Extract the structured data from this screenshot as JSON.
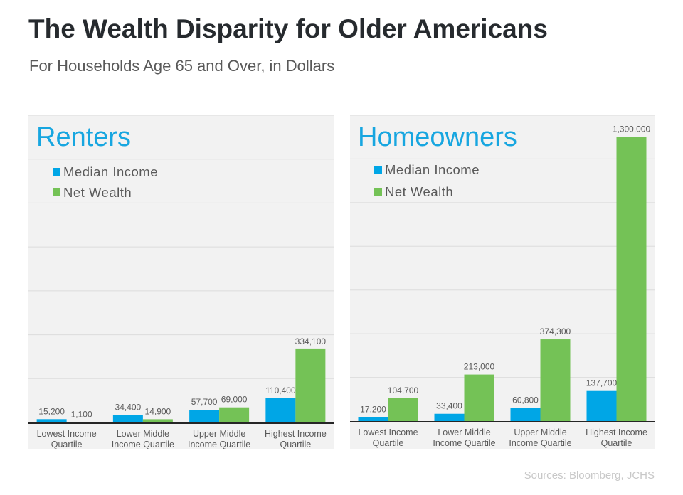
{
  "title": "The Wealth Disparity for Older Americans",
  "subtitle": "For Households Age 65 and Over, in Dollars",
  "sources": "Sources: Bloomberg, JCHS",
  "colors": {
    "median_income": "#00a6e6",
    "net_wealth": "#74c256",
    "title": "#17a6e0",
    "panel_bg": "#f2f2f2"
  },
  "chart_data": [
    {
      "type": "bar",
      "title": "Renters",
      "categories": [
        "Lowest Income Quartile",
        "Lower Middle Income Quartile",
        "Upper Middle Income Quartile",
        "Highest Income Quartile"
      ],
      "category_lines": [
        [
          "Lowest Income",
          "Quartile"
        ],
        [
          "Lower Middle",
          "Income Quartile"
        ],
        [
          "Upper Middle",
          "Income Quartile"
        ],
        [
          "Highest Income",
          "Quartile"
        ]
      ],
      "series": [
        {
          "name": "Median Income",
          "values": [
            15200,
            34400,
            57700,
            110400
          ],
          "labels": [
            "15,200",
            "34,400",
            "57,700",
            "110,400"
          ]
        },
        {
          "name": "Net Wealth",
          "values": [
            1100,
            14900,
            69000,
            334100
          ],
          "labels": [
            "1,100",
            "14,900",
            "69,000",
            "334,100"
          ]
        }
      ],
      "ylim": [
        0,
        1400000
      ],
      "grid_step": 200000,
      "grid": true,
      "legend": "top-left"
    },
    {
      "type": "bar",
      "title": "Homeowners",
      "categories": [
        "Lowest Income Quartile",
        "Lower Middle Income Quartile",
        "Upper Middle Income Quartile",
        "Highest Income Quartile"
      ],
      "category_lines": [
        [
          "Lowest Income",
          "Quartile"
        ],
        [
          "Lower Middle",
          "Income Quartile"
        ],
        [
          "Upper Middle",
          "Income Quartile"
        ],
        [
          "Highest Income",
          "Quartile"
        ]
      ],
      "series": [
        {
          "name": "Median Income",
          "values": [
            17200,
            33400,
            60800,
            137700
          ],
          "labels": [
            "17,200",
            "33,400",
            "60,800",
            "137,700"
          ]
        },
        {
          "name": "Net Wealth",
          "values": [
            104700,
            213000,
            374300,
            1300000
          ],
          "labels": [
            "104,700",
            "213,000",
            "374,300",
            "1,300,000"
          ]
        }
      ],
      "ylim": [
        0,
        1400000
      ],
      "grid_step": 200000,
      "grid": true,
      "legend": "top-left"
    }
  ]
}
